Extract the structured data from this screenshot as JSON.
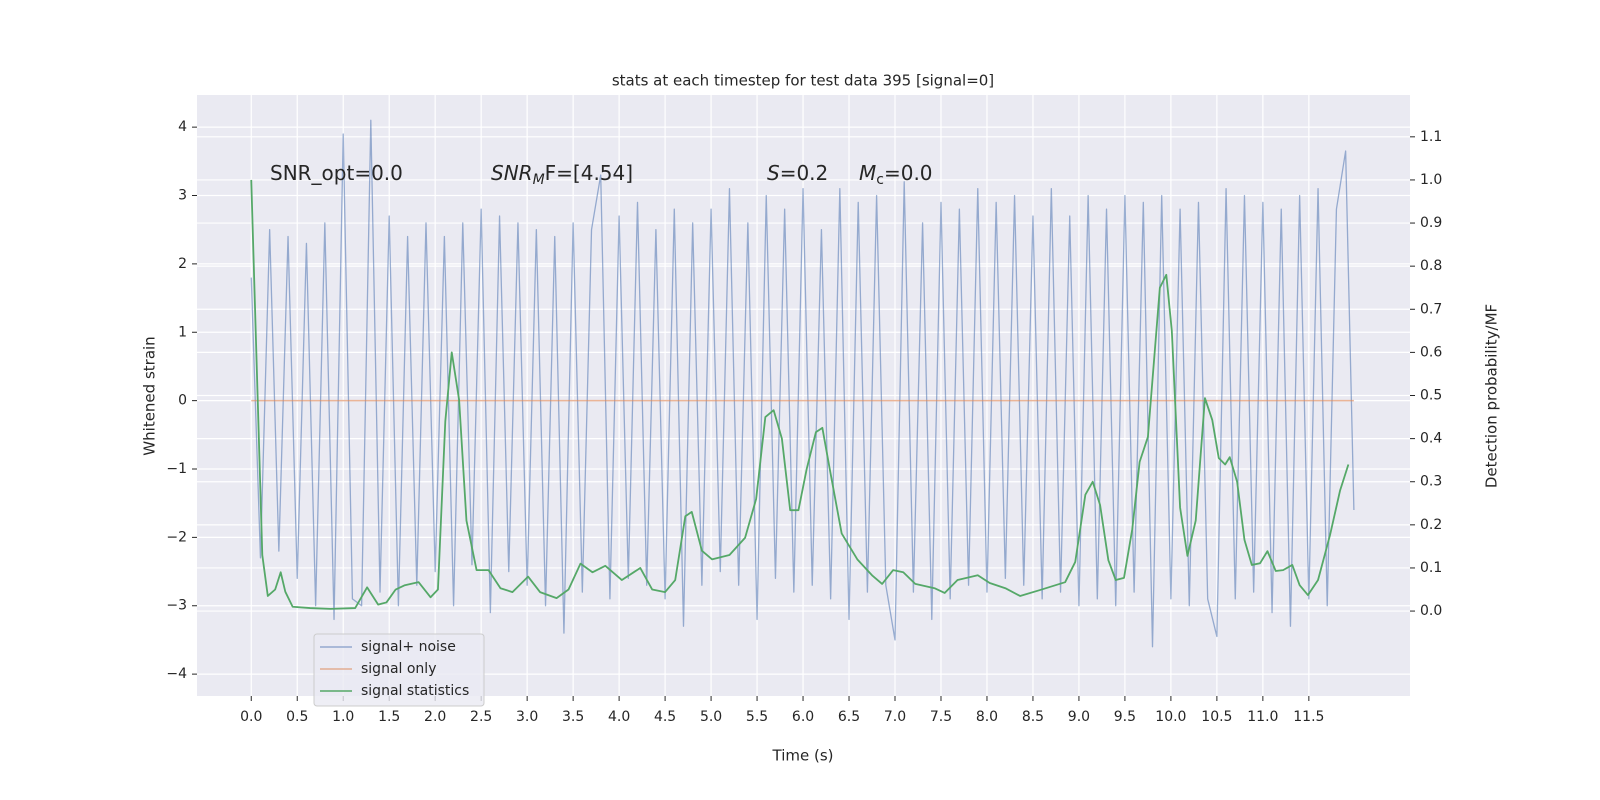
{
  "chart_data": {
    "type": "line",
    "title": "stats at each timestep for test data 395 [signal=0]",
    "xlabel": "Time (s)",
    "ylabel": "Whitened strain",
    "y2label": "Detection probability/MF",
    "annotations": [
      [
        "SNR_opt=0.0"
      ],
      [
        "SNR",
        "M",
        "F=[4.54]"
      ],
      [
        "S",
        "=0.2"
      ],
      [
        "M",
        "c",
        "=0.0"
      ]
    ],
    "xlim": [
      -0.59,
      12.6
    ],
    "ylim": [
      -4.32,
      4.47
    ],
    "y2lim": [
      -0.197,
      1.197
    ],
    "xticks": [
      {
        "value": 0,
        "label": "0.0"
      },
      0.5,
      {
        "value": 1,
        "label": "1.0"
      },
      1.5,
      {
        "value": 2,
        "label": "2.0"
      },
      2.5,
      {
        "value": 3,
        "label": "3.0"
      },
      3.5,
      {
        "value": 4,
        "label": "4.0"
      },
      4.5,
      {
        "value": 5,
        "label": "5.0"
      },
      5.5,
      {
        "value": 6,
        "label": "6.0"
      },
      6.5,
      {
        "value": 7,
        "label": "7.0"
      },
      7.5,
      {
        "value": 8,
        "label": "8.0"
      },
      8.5,
      {
        "value": 9,
        "label": "9.0"
      },
      9.5,
      {
        "value": 10,
        "label": "10.0"
      },
      10.5,
      {
        "value": 11,
        "label": "11.0"
      },
      11.5
    ],
    "yticks": [
      {
        "value": -4,
        "label": "−4"
      },
      {
        "value": -3,
        "label": "−3"
      },
      {
        "value": -2,
        "label": "−2"
      },
      {
        "value": -1,
        "label": "−1"
      },
      0,
      1,
      2,
      3,
      4
    ],
    "y2ticks": [
      {
        "value": 0,
        "label": "0.0"
      },
      0.1,
      0.2,
      0.3,
      0.4,
      0.5,
      0.6,
      0.7,
      0.8,
      0.9,
      {
        "value": 1,
        "label": "1.0"
      },
      1.1
    ],
    "grid": true,
    "legend": "lower left",
    "series": [
      {
        "name": "signal+ noise",
        "color": "#4c72b0",
        "x": [
          0.0,
          0.1,
          0.2,
          0.3,
          0.4,
          0.5,
          0.6,
          0.7,
          0.8,
          0.9,
          1.0,
          1.1,
          1.2,
          1.3,
          1.4,
          1.5,
          1.6,
          1.7,
          1.8,
          1.9,
          2.0,
          2.1,
          2.2,
          2.3,
          2.4,
          2.5,
          2.6,
          2.7,
          2.8,
          2.9,
          3.0,
          3.1,
          3.2,
          3.3,
          3.4,
          3.5,
          3.6,
          3.7,
          3.8,
          3.9,
          4.0,
          4.1,
          4.2,
          4.3,
          4.4,
          4.5,
          4.6,
          4.7,
          4.8,
          4.9,
          5.0,
          5.1,
          5.2,
          5.3,
          5.4,
          5.5,
          5.6,
          5.7,
          5.8,
          5.9,
          6.0,
          6.1,
          6.2,
          6.3,
          6.4,
          6.5,
          6.6,
          6.7,
          6.8,
          6.9,
          7.0,
          7.1,
          7.2,
          7.3,
          7.4,
          7.5,
          7.6,
          7.7,
          7.8,
          7.9,
          8.0,
          8.1,
          8.2,
          8.3,
          8.4,
          8.5,
          8.6,
          8.7,
          8.8,
          8.9,
          9.0,
          9.1,
          9.2,
          9.3,
          9.4,
          9.5,
          9.6,
          9.7,
          9.8,
          9.9,
          10.0,
          10.1,
          10.2,
          10.3,
          10.4,
          10.5,
          10.6,
          10.7,
          10.8,
          10.9,
          11.0,
          11.1,
          11.2,
          11.3,
          11.4,
          11.5,
          11.6,
          11.7,
          11.8,
          11.9,
          11.99
        ],
        "values": [
          1.8,
          -2.3,
          2.5,
          -2.2,
          2.4,
          -2.6,
          2.3,
          -3.0,
          2.6,
          -3.2,
          3.9,
          -2.9,
          -3.0,
          4.1,
          -2.8,
          2.7,
          -3.0,
          2.4,
          -2.7,
          2.6,
          -2.5,
          2.4,
          -3.0,
          2.6,
          -2.4,
          2.8,
          -3.1,
          2.7,
          -2.5,
          2.6,
          -2.7,
          2.5,
          -3.0,
          2.4,
          -3.4,
          2.6,
          -2.8,
          2.5,
          3.3,
          -2.9,
          2.7,
          -2.6,
          2.9,
          -2.7,
          2.5,
          -2.9,
          2.8,
          -3.3,
          2.6,
          -2.7,
          2.8,
          -2.5,
          3.1,
          -2.7,
          2.6,
          -3.2,
          3.0,
          -2.6,
          2.8,
          -2.8,
          3.1,
          -2.7,
          2.5,
          -2.9,
          3.1,
          -3.2,
          2.9,
          -2.8,
          3.0,
          -2.7,
          -3.5,
          3.2,
          -2.8,
          2.6,
          -3.2,
          2.9,
          -2.9,
          2.8,
          -2.7,
          3.1,
          -2.8,
          2.9,
          -2.6,
          3.0,
          -2.7,
          2.7,
          -2.9,
          3.1,
          -2.8,
          2.7,
          -3.0,
          3.0,
          -2.9,
          2.8,
          -3.0,
          3.0,
          -2.8,
          2.9,
          -3.6,
          3.0,
          -2.9,
          2.8,
          -3.0,
          2.9,
          -2.9,
          -3.45,
          3.1,
          -2.9,
          3.0,
          -2.8,
          2.9,
          -3.1,
          2.8,
          -3.3,
          3.0,
          -2.9,
          3.1,
          -3.0,
          2.8,
          3.65,
          -1.6
        ]
      },
      {
        "name": "signal only",
        "color": "#dd8452",
        "x": [
          0.0,
          11.99
        ],
        "values": [
          0,
          0
        ]
      },
      {
        "name": "signal statistics",
        "color": "#55a868",
        "axis": "y2",
        "x": [
          0,
          0.12,
          0.18,
          0.26,
          0.32,
          0.37,
          0.45,
          0.64,
          0.86,
          1.13,
          1.26,
          1.38,
          1.47,
          1.57,
          1.67,
          1.82,
          1.95,
          2.03,
          2.11,
          2.18,
          2.26,
          2.34,
          2.45,
          2.58,
          2.71,
          2.84,
          3.01,
          3.14,
          3.32,
          3.45,
          3.58,
          3.71,
          3.85,
          4.03,
          4.23,
          4.36,
          4.5,
          4.61,
          4.72,
          4.79,
          4.9,
          5.01,
          5.2,
          5.37,
          5.49,
          5.59,
          5.68,
          5.77,
          5.86,
          5.95,
          6.04,
          6.14,
          6.21,
          6.29,
          6.42,
          6.59,
          6.75,
          6.86,
          6.98,
          7.09,
          7.22,
          7.43,
          7.54,
          7.68,
          7.9,
          8.03,
          8.2,
          8.36,
          8.58,
          8.85,
          8.96,
          9.07,
          9.15,
          9.23,
          9.32,
          9.4,
          9.49,
          9.58,
          9.66,
          9.75,
          9.88,
          9.95,
          10.01,
          10.1,
          10.18,
          10.27,
          10.37,
          10.45,
          10.52,
          10.59,
          10.64,
          10.72,
          10.8,
          10.88,
          10.97,
          11.05,
          11.14,
          11.22,
          11.32,
          11.4,
          11.49,
          11.6,
          11.73,
          11.84,
          11.93
        ],
        "values": [
          1.0,
          0.13,
          0.035,
          0.05,
          0.09,
          0.045,
          0.01,
          0.007,
          0.005,
          0.007,
          0.055,
          0.015,
          0.02,
          0.05,
          0.06,
          0.067,
          0.032,
          0.05,
          0.44,
          0.6,
          0.49,
          0.21,
          0.095,
          0.095,
          0.053,
          0.044,
          0.08,
          0.044,
          0.03,
          0.05,
          0.11,
          0.09,
          0.105,
          0.072,
          0.1,
          0.05,
          0.044,
          0.072,
          0.22,
          0.23,
          0.14,
          0.12,
          0.13,
          0.17,
          0.26,
          0.45,
          0.466,
          0.4,
          0.234,
          0.234,
          0.33,
          0.415,
          0.425,
          0.33,
          0.18,
          0.12,
          0.083,
          0.063,
          0.095,
          0.09,
          0.063,
          0.053,
          0.042,
          0.072,
          0.083,
          0.065,
          0.053,
          0.035,
          0.049,
          0.067,
          0.114,
          0.27,
          0.3,
          0.246,
          0.118,
          0.072,
          0.077,
          0.19,
          0.346,
          0.404,
          0.75,
          0.78,
          0.65,
          0.24,
          0.128,
          0.21,
          0.494,
          0.443,
          0.355,
          0.34,
          0.357,
          0.3,
          0.165,
          0.107,
          0.111,
          0.139,
          0.093,
          0.095,
          0.107,
          0.06,
          0.037,
          0.072,
          0.176,
          0.28,
          0.34
        ]
      }
    ]
  }
}
